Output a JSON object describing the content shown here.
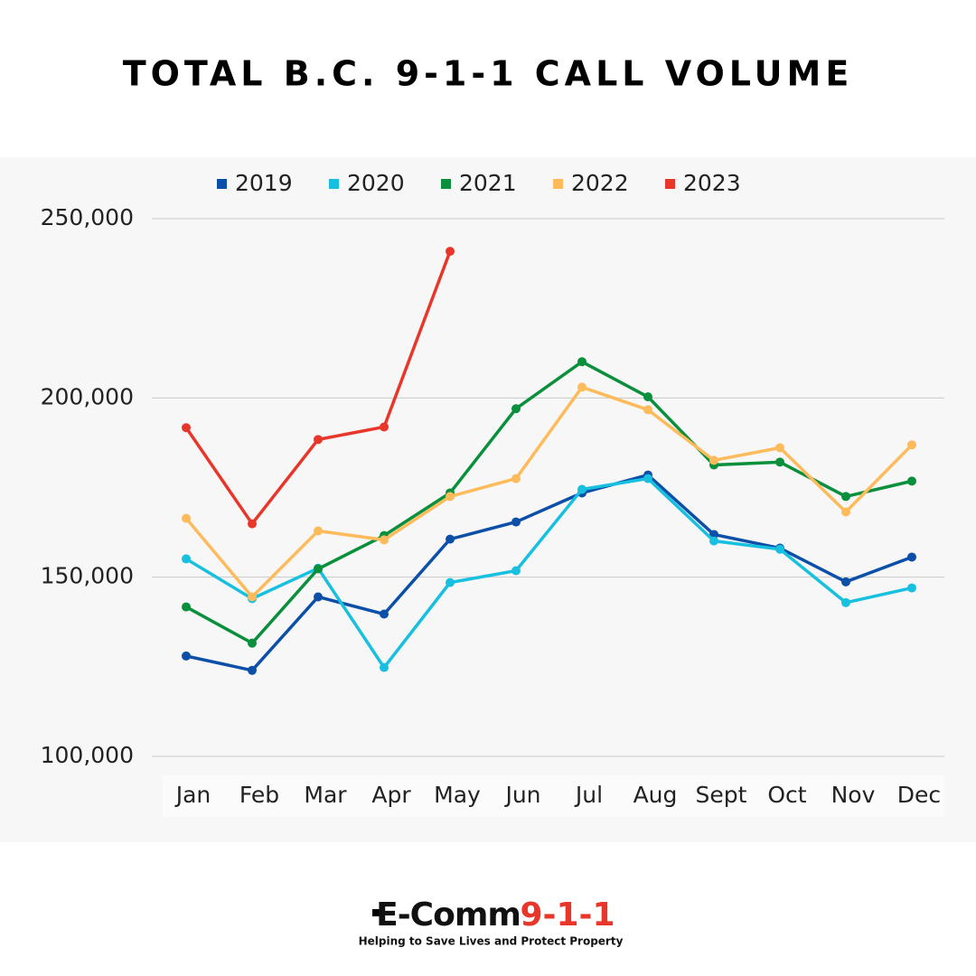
{
  "chart_data": {
    "type": "line",
    "title": "TOTAL B.C. 9-1-1 CALL VOLUME",
    "categories": [
      "Jan",
      "Feb",
      "Mar",
      "Apr",
      "May",
      "Jun",
      "Jul",
      "Aug",
      "Sept",
      "Oct",
      "Nov",
      "Dec"
    ],
    "series": [
      {
        "name": "2019",
        "color": "#0b4fa8",
        "values": [
          128000,
          124000,
          144500,
          139700,
          160600,
          165400,
          173500,
          178500,
          161900,
          158100,
          148700,
          155600
        ]
      },
      {
        "name": "2020",
        "color": "#18c0e0",
        "values": [
          155100,
          144000,
          152500,
          124800,
          148500,
          151800,
          174500,
          177500,
          160100,
          157800,
          142900,
          147000
        ]
      },
      {
        "name": "2021",
        "color": "#0a8f3c",
        "values": [
          141700,
          131600,
          152300,
          161600,
          173500,
          197000,
          210100,
          200300,
          181300,
          182100,
          172500,
          176800
        ]
      },
      {
        "name": "2022",
        "color": "#fdbb5b",
        "values": [
          166400,
          144500,
          162900,
          160400,
          172500,
          177500,
          203000,
          196700,
          182600,
          186100,
          168200,
          186900
        ]
      },
      {
        "name": "2023",
        "color": "#e8372a",
        "values": [
          191700,
          164900,
          188400,
          191900,
          240900,
          null,
          null,
          null,
          null,
          null,
          null,
          null
        ]
      }
    ],
    "ylim": [
      100000,
      250000
    ],
    "yticks": [
      {
        "value": 100000,
        "label": "100,000"
      },
      {
        "value": 150000,
        "label": "150,000"
      },
      {
        "value": 200000,
        "label": "200,000"
      },
      {
        "value": 250000,
        "label": "250,000"
      }
    ],
    "grid": true,
    "legend": "top"
  },
  "logo": {
    "name": "E-Comm",
    "number": "9-1-1",
    "tagline": "Helping to Save Lives and Protect Property"
  }
}
